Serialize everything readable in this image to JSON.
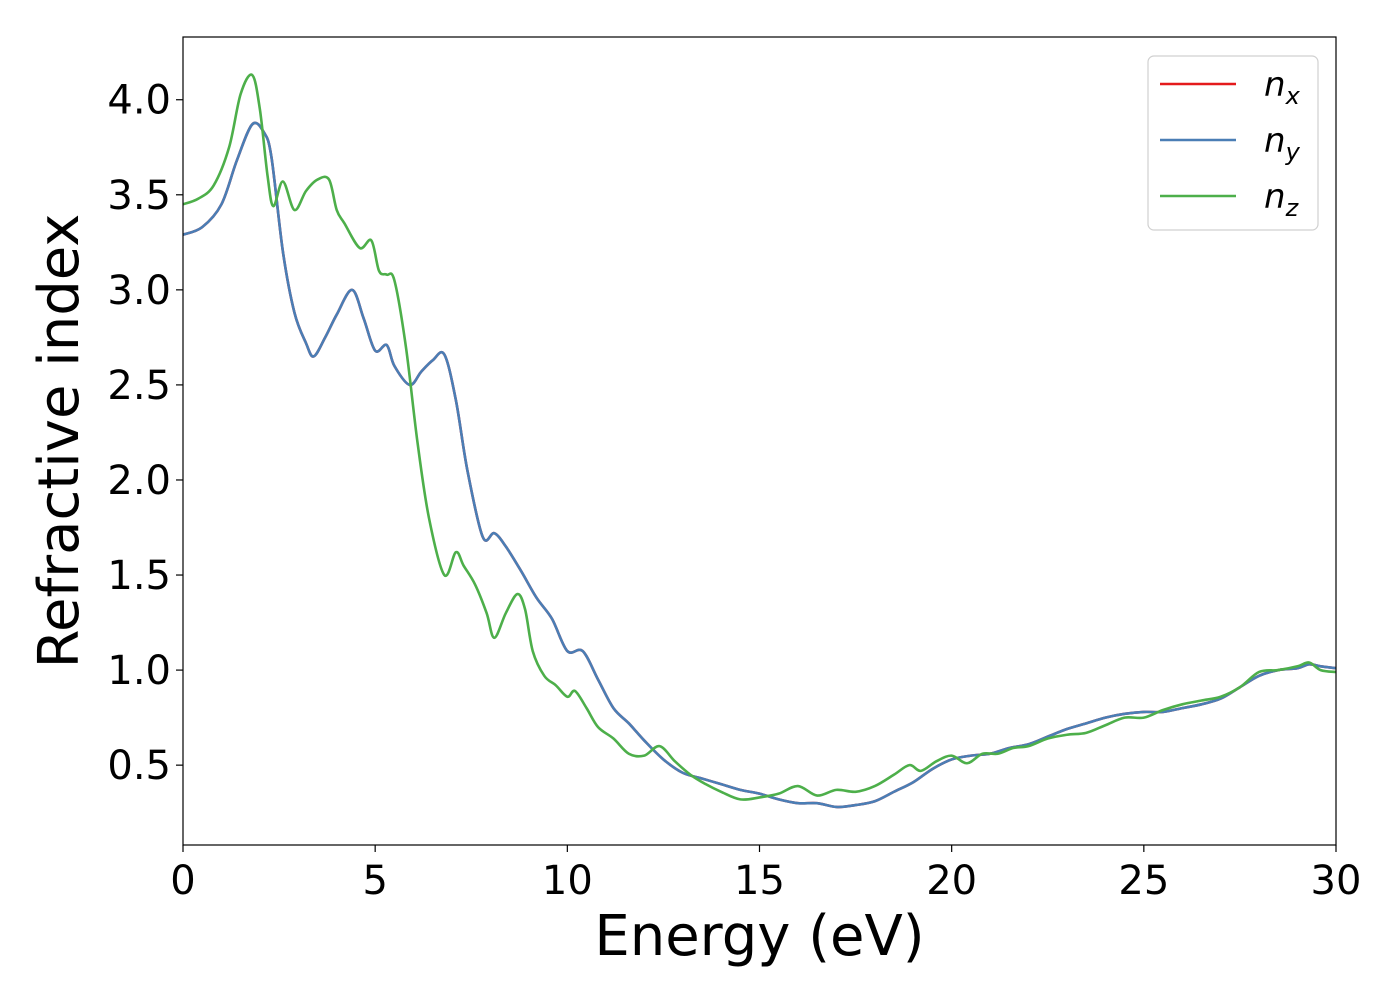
{
  "chart_data": {
    "type": "line",
    "xlabel": "Energy (eV)",
    "ylabel": "Refractive index",
    "xlim": [
      0,
      30
    ],
    "ylim": [
      0.08,
      4.33
    ],
    "xticks": [
      "0",
      "5",
      "10",
      "15",
      "20",
      "25",
      "30"
    ],
    "yticks": [
      "0.5",
      "1.0",
      "1.5",
      "2.0",
      "2.5",
      "3.0",
      "3.5",
      "4.0"
    ],
    "legend_position": "top-right",
    "grid": false,
    "series": [
      {
        "name": "n",
        "subscript": "x",
        "color": "#e41a1c",
        "x": [
          0,
          0.5,
          1.0,
          1.4,
          1.8,
          2.1,
          2.3,
          2.6,
          2.9,
          3.2,
          3.4,
          3.7,
          4.0,
          4.4,
          4.7,
          5.0,
          5.3,
          5.5,
          5.9,
          6.2,
          6.5,
          6.8,
          7.1,
          7.4,
          7.8,
          8.1,
          8.4,
          8.8,
          9.2,
          9.6,
          10.0,
          10.4,
          10.8,
          11.2,
          11.6,
          12.0,
          12.5,
          13.0,
          13.5,
          14.0,
          14.5,
          15.0,
          15.5,
          16.0,
          16.5,
          17.0,
          17.5,
          18.0,
          18.5,
          19.0,
          19.5,
          20.0,
          20.5,
          21.0,
          21.5,
          22.0,
          22.5,
          23.0,
          23.5,
          24.0,
          24.5,
          25.0,
          25.5,
          26.0,
          26.5,
          27.0,
          27.5,
          28.0,
          28.5,
          29.0,
          29.3,
          29.6,
          30.0
        ],
        "values": [
          3.29,
          3.33,
          3.45,
          3.68,
          3.87,
          3.83,
          3.7,
          3.2,
          2.88,
          2.72,
          2.65,
          2.75,
          2.87,
          3.0,
          2.85,
          2.68,
          2.71,
          2.6,
          2.5,
          2.57,
          2.63,
          2.66,
          2.42,
          2.05,
          1.7,
          1.72,
          1.65,
          1.52,
          1.38,
          1.27,
          1.1,
          1.1,
          0.95,
          0.8,
          0.72,
          0.63,
          0.53,
          0.46,
          0.43,
          0.4,
          0.37,
          0.35,
          0.32,
          0.3,
          0.3,
          0.28,
          0.29,
          0.31,
          0.36,
          0.41,
          0.48,
          0.53,
          0.55,
          0.56,
          0.59,
          0.61,
          0.65,
          0.69,
          0.72,
          0.75,
          0.77,
          0.78,
          0.78,
          0.8,
          0.82,
          0.85,
          0.91,
          0.97,
          1.0,
          1.01,
          1.03,
          1.02,
          1.01
        ]
      },
      {
        "name": "n",
        "subscript": "y",
        "color": "#4a7eb5",
        "x": [
          0,
          0.5,
          1.0,
          1.4,
          1.8,
          2.1,
          2.3,
          2.6,
          2.9,
          3.2,
          3.4,
          3.7,
          4.0,
          4.4,
          4.7,
          5.0,
          5.3,
          5.5,
          5.9,
          6.2,
          6.5,
          6.8,
          7.1,
          7.4,
          7.8,
          8.1,
          8.4,
          8.8,
          9.2,
          9.6,
          10.0,
          10.4,
          10.8,
          11.2,
          11.6,
          12.0,
          12.5,
          13.0,
          13.5,
          14.0,
          14.5,
          15.0,
          15.5,
          16.0,
          16.5,
          17.0,
          17.5,
          18.0,
          18.5,
          19.0,
          19.5,
          20.0,
          20.5,
          21.0,
          21.5,
          22.0,
          22.5,
          23.0,
          23.5,
          24.0,
          24.5,
          25.0,
          25.5,
          26.0,
          26.5,
          27.0,
          27.5,
          28.0,
          28.5,
          29.0,
          29.3,
          29.6,
          30.0
        ],
        "values": [
          3.29,
          3.33,
          3.45,
          3.68,
          3.87,
          3.83,
          3.7,
          3.2,
          2.88,
          2.72,
          2.65,
          2.75,
          2.87,
          3.0,
          2.85,
          2.68,
          2.71,
          2.6,
          2.5,
          2.57,
          2.63,
          2.66,
          2.42,
          2.05,
          1.7,
          1.72,
          1.65,
          1.52,
          1.38,
          1.27,
          1.1,
          1.1,
          0.95,
          0.8,
          0.72,
          0.63,
          0.53,
          0.46,
          0.43,
          0.4,
          0.37,
          0.35,
          0.32,
          0.3,
          0.3,
          0.28,
          0.29,
          0.31,
          0.36,
          0.41,
          0.48,
          0.53,
          0.55,
          0.56,
          0.59,
          0.61,
          0.65,
          0.69,
          0.72,
          0.75,
          0.77,
          0.78,
          0.78,
          0.8,
          0.82,
          0.85,
          0.91,
          0.97,
          1.0,
          1.01,
          1.03,
          1.02,
          1.01
        ]
      },
      {
        "name": "n",
        "subscript": "z",
        "color": "#4daf4a",
        "x": [
          0,
          0.4,
          0.8,
          1.2,
          1.5,
          1.8,
          2.0,
          2.2,
          2.35,
          2.6,
          2.9,
          3.2,
          3.5,
          3.8,
          4.0,
          4.2,
          4.6,
          4.9,
          5.1,
          5.3,
          5.5,
          5.8,
          6.1,
          6.4,
          6.8,
          7.1,
          7.3,
          7.6,
          7.9,
          8.1,
          8.4,
          8.7,
          8.9,
          9.1,
          9.4,
          9.7,
          10.0,
          10.2,
          10.5,
          10.8,
          11.2,
          11.6,
          12.0,
          12.4,
          12.8,
          13.2,
          13.6,
          14.0,
          14.5,
          15.0,
          15.5,
          16.0,
          16.5,
          17.0,
          17.5,
          18.0,
          18.5,
          18.9,
          19.2,
          19.6,
          20.0,
          20.4,
          20.8,
          21.2,
          21.6,
          22.0,
          22.5,
          23.0,
          23.5,
          24.0,
          24.5,
          25.0,
          25.5,
          26.0,
          26.5,
          27.0,
          27.5,
          28.0,
          28.5,
          29.0,
          29.3,
          29.6,
          30.0
        ],
        "values": [
          3.45,
          3.48,
          3.55,
          3.75,
          4.03,
          4.13,
          3.95,
          3.6,
          3.44,
          3.57,
          3.42,
          3.52,
          3.58,
          3.58,
          3.42,
          3.35,
          3.22,
          3.26,
          3.1,
          3.08,
          3.05,
          2.7,
          2.2,
          1.8,
          1.5,
          1.62,
          1.55,
          1.45,
          1.3,
          1.17,
          1.3,
          1.4,
          1.32,
          1.1,
          0.97,
          0.92,
          0.86,
          0.89,
          0.8,
          0.7,
          0.64,
          0.56,
          0.55,
          0.6,
          0.52,
          0.45,
          0.4,
          0.36,
          0.32,
          0.33,
          0.35,
          0.39,
          0.34,
          0.37,
          0.36,
          0.39,
          0.45,
          0.5,
          0.47,
          0.52,
          0.55,
          0.51,
          0.56,
          0.56,
          0.59,
          0.6,
          0.64,
          0.66,
          0.67,
          0.71,
          0.75,
          0.75,
          0.79,
          0.82,
          0.84,
          0.86,
          0.91,
          0.99,
          1.0,
          1.02,
          1.04,
          1.0,
          0.99
        ]
      }
    ]
  }
}
